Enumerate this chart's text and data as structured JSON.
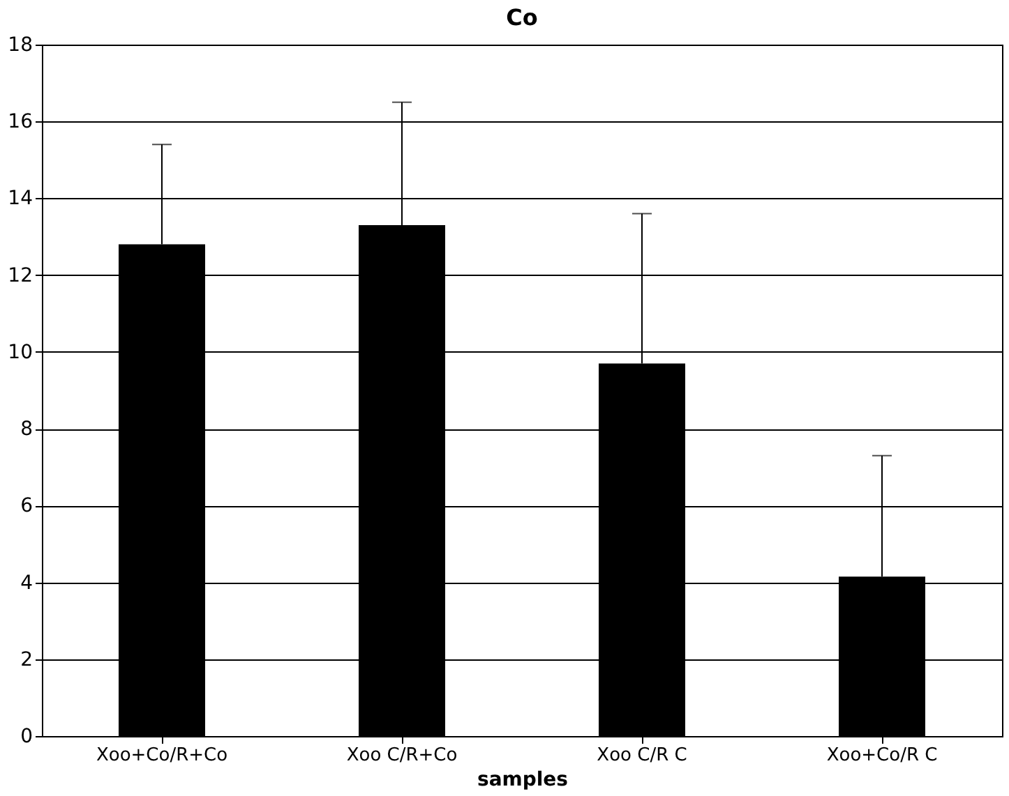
{
  "chart_data": {
    "type": "bar",
    "title": "Co",
    "xlabel": "samples",
    "categories": [
      "Xoo+Co/R+Co",
      "Xoo C/R+Co",
      "Xoo C/R C",
      "Xoo+Co/R C"
    ],
    "values": [
      12.8,
      13.3,
      9.7,
      4.15
    ],
    "errors": [
      [
        12.8,
        15.4
      ],
      [
        13.3,
        16.5
      ],
      [
        9.7,
        13.6
      ],
      [
        4.15,
        7.3
      ]
    ],
    "color": "#000000",
    "ylim": [
      0,
      18
    ],
    "yticks": [
      0,
      2,
      4,
      6,
      8,
      10,
      12,
      14,
      16,
      18
    ],
    "grid": "y"
  }
}
